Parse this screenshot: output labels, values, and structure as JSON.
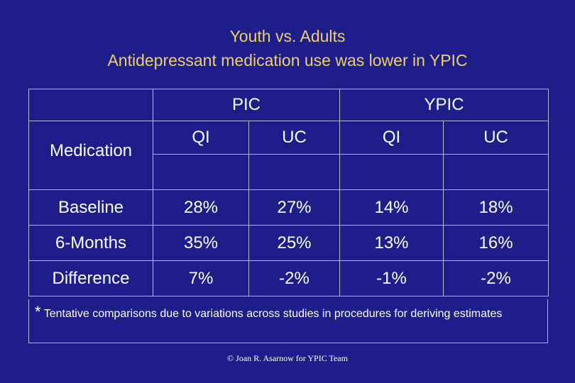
{
  "title": {
    "line1": "Youth vs. Adults",
    "line2": "Antidepressant medication use was lower in YPIC"
  },
  "table": {
    "group_headers": [
      "PIC",
      "YPIC"
    ],
    "sub_headers": [
      "QI",
      "UC",
      "QI",
      "UC"
    ],
    "row_header": "Medication",
    "rows": [
      {
        "label": "Baseline",
        "values": [
          "28%",
          "27%",
          "14%",
          "18%"
        ]
      },
      {
        "label": "6-Months",
        "values": [
          "35%",
          "25%",
          "13%",
          "16%"
        ]
      },
      {
        "label": "Difference",
        "values": [
          "7%",
          "-2%",
          "-1%",
          "-2%"
        ]
      }
    ]
  },
  "footnote": {
    "star": "*",
    "text": "Tentative comparisons due to variations across studies in procedures for deriving estimates"
  },
  "copyright": "© Joan R. Asarnow for YPIC Team",
  "colors": {
    "background": "#1e1e8a",
    "title": "#f0cf6a",
    "header": "#e070e0",
    "text": "#ffffff",
    "border": "#b9b9d6"
  }
}
